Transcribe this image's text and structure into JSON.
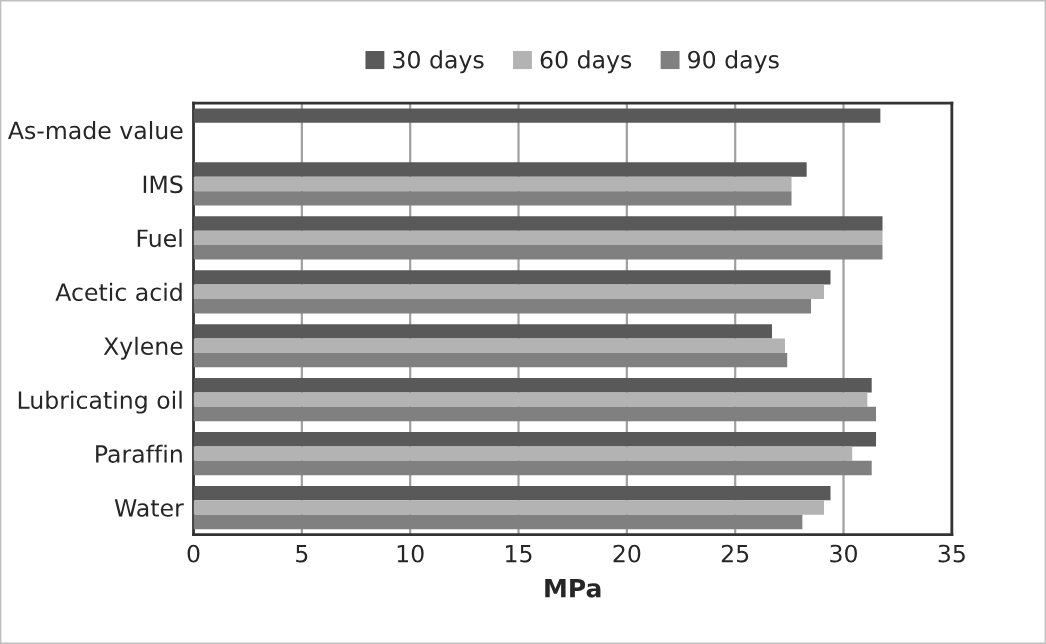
{
  "chart_data": {
    "type": "bar",
    "orientation": "horizontal",
    "xlabel": "MPa",
    "categories": [
      "As-made value",
      "IMS",
      "Fuel",
      "Acetic acid",
      "Xylene",
      "Lubricating oil",
      "Paraffin",
      "Water"
    ],
    "series": [
      {
        "name": "30 days",
        "color": "#595959",
        "values": [
          31.7,
          28.3,
          31.8,
          29.4,
          26.7,
          31.3,
          31.5,
          29.4
        ]
      },
      {
        "name": "60 days",
        "color": "#b3b3b3",
        "values": [
          null,
          27.6,
          31.8,
          29.1,
          27.3,
          31.1,
          30.4,
          29.1
        ]
      },
      {
        "name": "90 days",
        "color": "#808080",
        "values": [
          null,
          27.6,
          31.8,
          28.5,
          27.4,
          31.5,
          31.3,
          28.1
        ]
      }
    ],
    "xlim": [
      0,
      35
    ],
    "xticks": [
      0,
      5,
      10,
      15,
      20,
      25,
      30,
      35
    ],
    "grid": "x",
    "legend": "top"
  }
}
